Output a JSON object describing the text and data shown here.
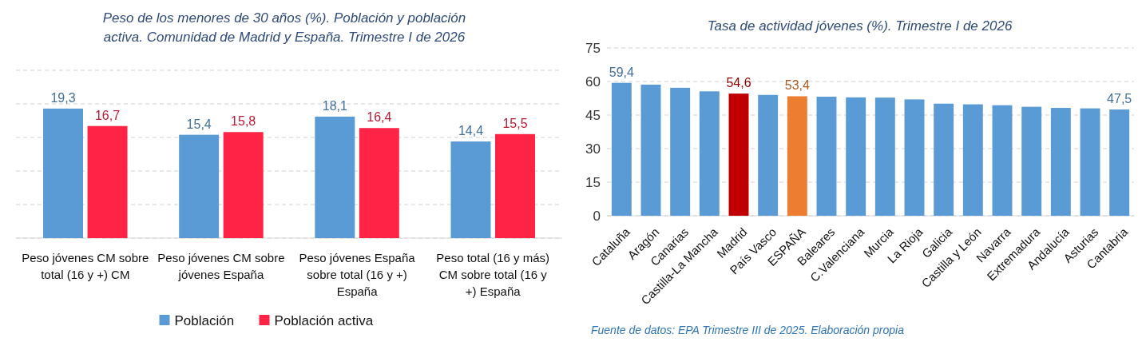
{
  "chart_data": [
    {
      "type": "bar",
      "title": "Peso de los menores de 30 años (%). Población y población activa. Comunidad de Madrid y España. Trimestre I de 2026",
      "categories": [
        "Peso jóvenes CM sobre total (16 y +) CM",
        "Peso jóvenes CM sobre jóvenes España",
        "Peso jóvenes España sobre total (16 y +) España",
        "Peso total (16 y más) CM sobre total (16 y +) España"
      ],
      "series": [
        {
          "name": "Población",
          "color": "#5b9bd5",
          "values": [
            19.3,
            15.4,
            18.1,
            14.4
          ],
          "value_labels": [
            "19,3",
            "15,4",
            "18,1",
            "14,4"
          ]
        },
        {
          "name": "Población activa",
          "color": "#ff2346",
          "values": [
            16.7,
            15.8,
            16.4,
            15.5
          ],
          "value_labels": [
            "16,7",
            "15,8",
            "16,4",
            "15,5"
          ]
        }
      ],
      "ylim": [
        0,
        25
      ],
      "yticks": [
        {
          "value": 0,
          "label": null
        },
        {
          "value": 5,
          "label": null
        },
        {
          "value": 10,
          "label": null
        },
        {
          "value": 15,
          "label": null
        },
        {
          "value": 20,
          "label": null
        },
        {
          "value": 25,
          "label": null
        }
      ],
      "tick_labels": "x",
      "grid": "y",
      "legend": "bottom"
    },
    {
      "type": "bar",
      "title": "Tasa de actividad jóvenes (%). Trimestre I de 2026",
      "categories": [
        "Cataluña",
        "Aragón",
        "Canarias",
        "Castilla-La Mancha",
        "Madrid",
        "País Vasco",
        "ESPAÑA",
        "Baleares",
        "C.Valenciana",
        "Murcia",
        "La Rioja",
        "Galicia",
        "Castilla y León",
        "Navarra",
        "Extremadura",
        "Andalucía",
        "Asturias",
        "Cantabria"
      ],
      "values": [
        59.4,
        58.6,
        57.2,
        55.6,
        54.6,
        54.0,
        53.4,
        53.2,
        52.9,
        52.8,
        52.0,
        50.1,
        49.8,
        49.4,
        48.7,
        48.2,
        48.0,
        47.5
      ],
      "value_labels": [
        "59,4",
        null,
        null,
        null,
        "54,6",
        null,
        "53,4",
        null,
        null,
        null,
        null,
        null,
        null,
        null,
        null,
        null,
        null,
        "47,5"
      ],
      "colors": [
        "#5b9bd5",
        "#5b9bd5",
        "#5b9bd5",
        "#5b9bd5",
        "#c00000",
        "#5b9bd5",
        "#ed7d31",
        "#5b9bd5",
        "#5b9bd5",
        "#5b9bd5",
        "#5b9bd5",
        "#5b9bd5",
        "#5b9bd5",
        "#5b9bd5",
        "#5b9bd5",
        "#5b9bd5",
        "#5b9bd5",
        "#5b9bd5"
      ],
      "ylim": [
        0,
        75
      ],
      "yticks": [
        0,
        15,
        30,
        45,
        60,
        75
      ],
      "grid": "y",
      "annotations": [
        "Fuente de datos: EPA Trimestre III de 2025. Elaboración propia"
      ]
    }
  ]
}
